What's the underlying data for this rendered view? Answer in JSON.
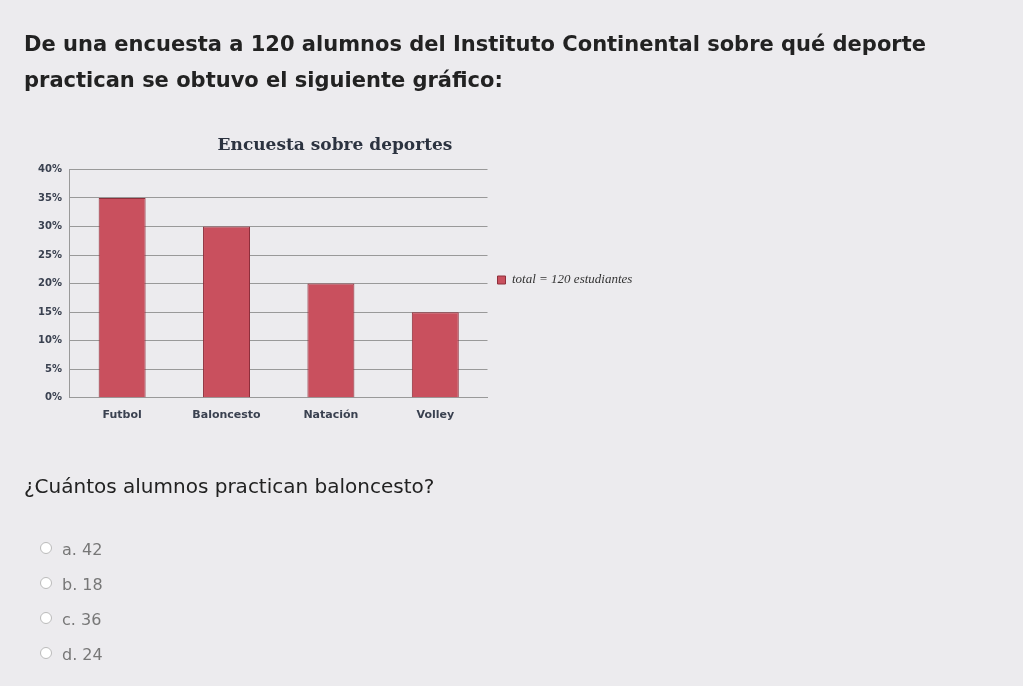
{
  "chart_data": {
    "type": "bar",
    "title": "Encuesta sobre deportes",
    "categories": [
      "Futbol",
      "Baloncesto",
      "Natación",
      "Volley"
    ],
    "series": [
      {
        "name": "total = 120 estudiantes",
        "color": "#c9505e",
        "values": [
          35,
          30,
          20,
          15
        ]
      }
    ],
    "ylim": [
      0,
      40
    ],
    "yticks": [
      {
        "value": 0,
        "label": "0%"
      },
      {
        "value": 5,
        "label": "5%"
      },
      {
        "value": 10,
        "label": "10%"
      },
      {
        "value": 15,
        "label": "15%"
      },
      {
        "value": 20,
        "label": "20%"
      },
      {
        "value": 25,
        "label": "25%"
      },
      {
        "value": 30,
        "label": "30%"
      },
      {
        "value": 35,
        "label": "35%"
      },
      {
        "value": 40,
        "label": "40%"
      }
    ],
    "grid": "y",
    "legend": "right",
    "annotations": [
      "De una encuesta a 120 alumnos del Instituto Continental sobre qué deporte practican se obtuvo el siguiente gráfico:",
      "¿Cuántos alumnos practican baloncesto?",
      "a.  42",
      "b.  18",
      "c.  36",
      "d.  24"
    ]
  }
}
